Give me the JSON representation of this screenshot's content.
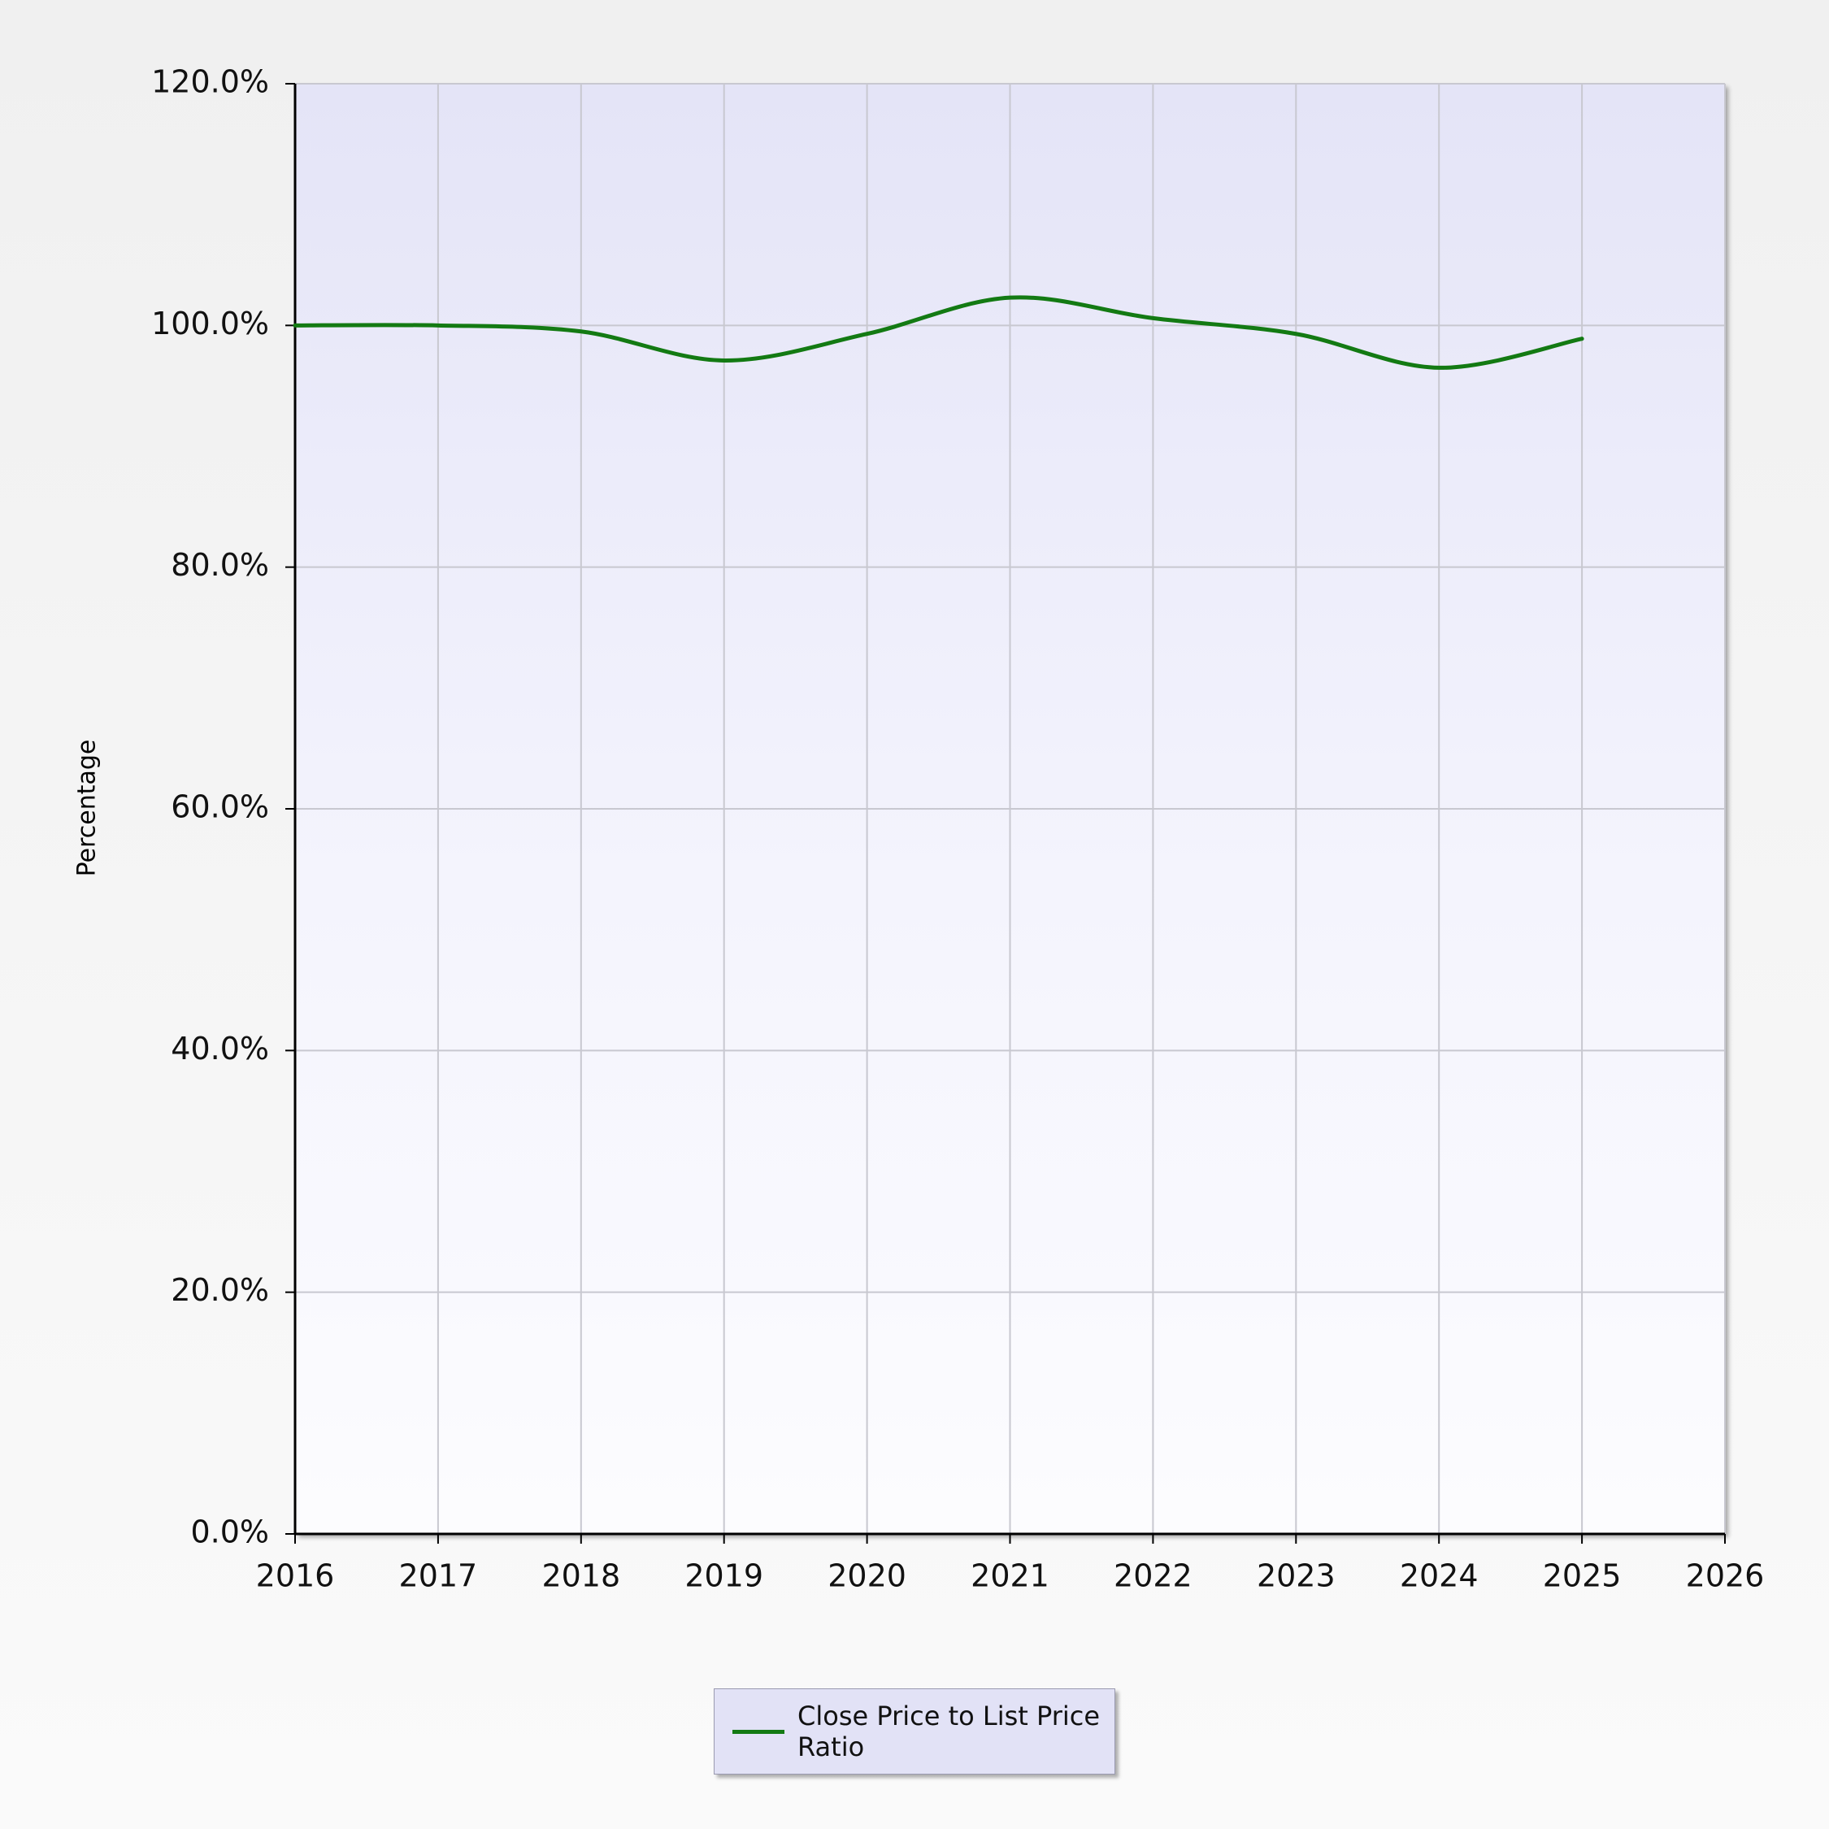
{
  "chart_data": {
    "type": "line",
    "y_label": "Percentage",
    "x": [
      2016,
      2017,
      2018,
      2019,
      2020,
      2021,
      2022,
      2023,
      2024,
      2025
    ],
    "series": [
      {
        "name": "Close Price to List Price Ratio",
        "color": "#137a13",
        "values": [
          100.0,
          100.0,
          99.5,
          97.1,
          99.3,
          102.3,
          100.6,
          99.3,
          96.5,
          98.9
        ]
      }
    ],
    "xlim": [
      2016,
      2026
    ],
    "xticks": [
      2016,
      2017,
      2018,
      2019,
      2020,
      2021,
      2022,
      2023,
      2024,
      2025,
      2026
    ],
    "ylim": [
      0,
      120
    ],
    "yticks": [
      {
        "value": 0,
        "label": "0.0%"
      },
      {
        "value": 20,
        "label": "20.0%"
      },
      {
        "value": 40,
        "label": "40.0%"
      },
      {
        "value": 60,
        "label": "60.0%"
      },
      {
        "value": 80,
        "label": "80.0%"
      },
      {
        "value": 100,
        "label": "100.0%"
      },
      {
        "value": 120,
        "label": "120.0%"
      }
    ],
    "grid": true,
    "smooth": true,
    "legend": "bottom"
  }
}
